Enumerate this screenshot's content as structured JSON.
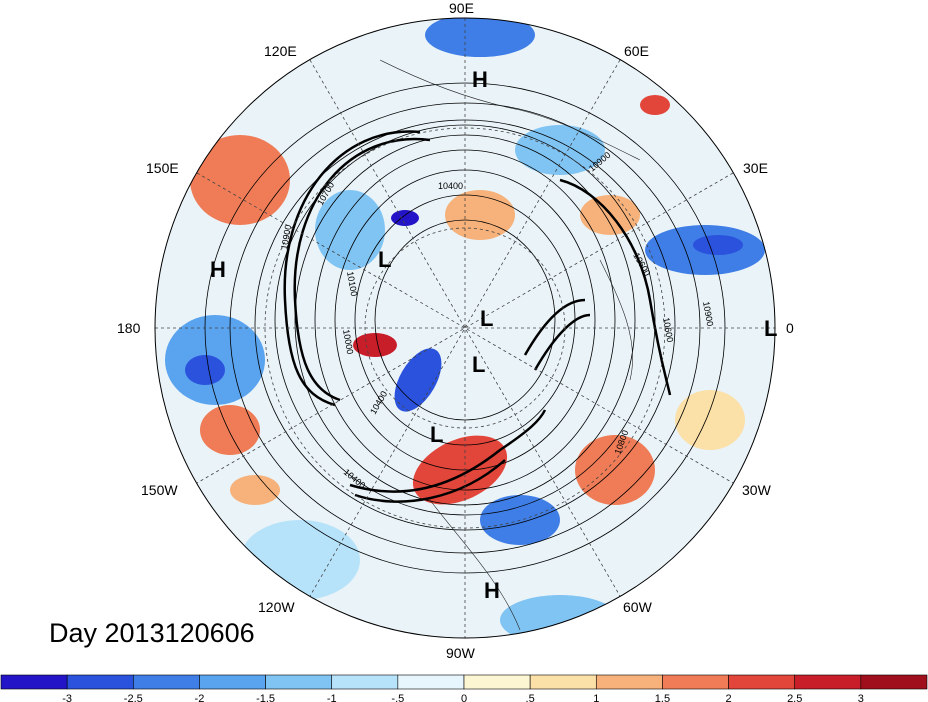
{
  "title": "Day 2013120606",
  "longitude_labels": [
    "90E",
    "60E",
    "30E",
    "0",
    "30W",
    "60W",
    "90W",
    "120W",
    "150W",
    "180",
    "150E",
    "120E"
  ],
  "pressure_centers": [
    "H",
    "H",
    "L",
    "L",
    "L",
    "L",
    "H",
    "L"
  ],
  "contour_labels": [
    "10400",
    "10900",
    "10700",
    "10900",
    "10100",
    "10000",
    "10400",
    "10600",
    "10900",
    "10800",
    "10600",
    "10400"
  ],
  "colorbar": {
    "ticks": [
      "-3",
      "-2.5",
      "-2",
      "-1.5",
      "-1",
      "-.5",
      "0",
      ".5",
      "1",
      "1.5",
      "2",
      "2.5",
      "3"
    ],
    "colors": [
      "#2414c8",
      "#2a52dc",
      "#3f7ee6",
      "#5aa3ee",
      "#80c4f4",
      "#b6e2fa",
      "#e6f6fc",
      "#fdf6d2",
      "#fbe0a8",
      "#f6b27a",
      "#ef7c56",
      "#e2453a",
      "#c81e2a",
      "#a0101c"
    ]
  }
}
